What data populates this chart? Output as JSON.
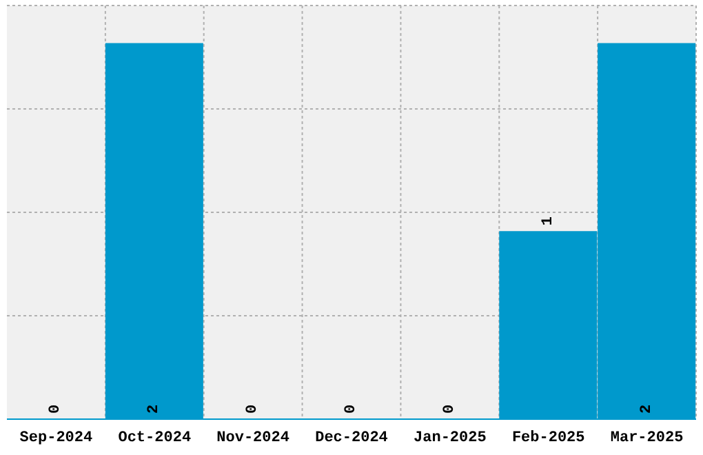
{
  "chart_data": {
    "type": "bar",
    "categories": [
      "Sep-2024",
      "Oct-2024",
      "Nov-2024",
      "Dec-2024",
      "Jan-2025",
      "Feb-2025",
      "Mar-2025"
    ],
    "values": [
      0,
      2,
      0,
      0,
      0,
      1,
      2
    ],
    "color": "#0099cc",
    "data_labels": true,
    "grid": true,
    "tick_labels": "x",
    "ylim": [
      0,
      2.2
    ],
    "yticks": [
      {
        "value": 0,
        "label": null
      },
      {
        "value": 0.55,
        "label": null
      },
      {
        "value": 1.1,
        "label": null
      },
      {
        "value": 1.65,
        "label": null
      },
      {
        "value": 2.2,
        "label": null
      }
    ]
  }
}
